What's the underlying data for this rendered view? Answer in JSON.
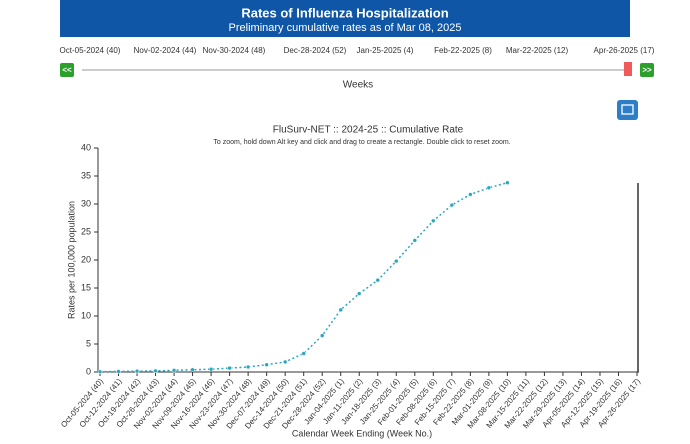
{
  "header": {
    "title": "Rates of Influenza Hospitalization",
    "subtitle": "Preliminary cumulative rates as of Mar 08, 2025"
  },
  "slider": {
    "labels": [
      "Oct-05-2024 (40)",
      "Nov-02-2024 (44)",
      "Nov-30-2024 (48)",
      "Dec-28-2024 (52)",
      "Jan-25-2025 (4)",
      "Feb-22-2025 (8)",
      "Mar-22-2025 (12)",
      "Apr-26-2025 (17)"
    ],
    "prev": "<<",
    "next": ">>",
    "axis_label": "Weeks"
  },
  "chart_data": {
    "type": "line",
    "title": "FluSurv-NET :: 2024-25 :: Cumulative Rate",
    "subtitle": "To zoom, hold down Alt key and click and drag to create a rectangle. Double click to reset zoom.",
    "x_label": "Calendar Week Ending (Week No.)",
    "y_label": "Rates per 100,000 population",
    "categories": [
      "Oct-05-2024 (40)",
      "Oct-12-2024 (41)",
      "Oct-19-2024 (42)",
      "Oct-26-2024 (43)",
      "Nov-02-2024 (44)",
      "Nov-09-2024 (45)",
      "Nov-16-2024 (46)",
      "Nov-23-2024 (47)",
      "Nov-30-2024 (48)",
      "Dec-07-2024 (49)",
      "Dec-14-2024 (50)",
      "Dec-21-2024 (51)",
      "Dec-28-2024 (52)",
      "Jan-04-2025 (1)",
      "Jan-11-2025 (2)",
      "Jan-18-2025 (3)",
      "Jan-25-2025 (4)",
      "Feb-01-2025 (5)",
      "Feb-08-2025 (6)",
      "Feb-15-2025 (7)",
      "Feb-22-2025 (8)",
      "Mar-01-2025 (9)",
      "Mar-08-2025 (10)",
      "Mar-15-2025 (11)",
      "Mar-22-2025 (12)",
      "Mar-29-2025 (13)",
      "Apr-05-2025 (14)",
      "Apr-12-2025 (15)",
      "Apr-19-2025 (16)",
      "Apr-26-2025 (17)"
    ],
    "values": [
      0.05,
      0.1,
      0.15,
      0.2,
      0.3,
      0.4,
      0.5,
      0.7,
      0.9,
      1.3,
      1.8,
      3.3,
      6.5,
      11.1,
      14,
      16.4,
      19.8,
      23.5,
      27,
      29.8,
      31.7,
      32.9,
      33.8,
      null,
      null,
      null,
      null,
      null,
      null,
      null
    ],
    "color": "#2aa7c0",
    "ylim": [
      0,
      40
    ],
    "yticks": [
      0,
      5,
      10,
      15,
      20,
      25,
      30,
      35,
      40
    ]
  }
}
